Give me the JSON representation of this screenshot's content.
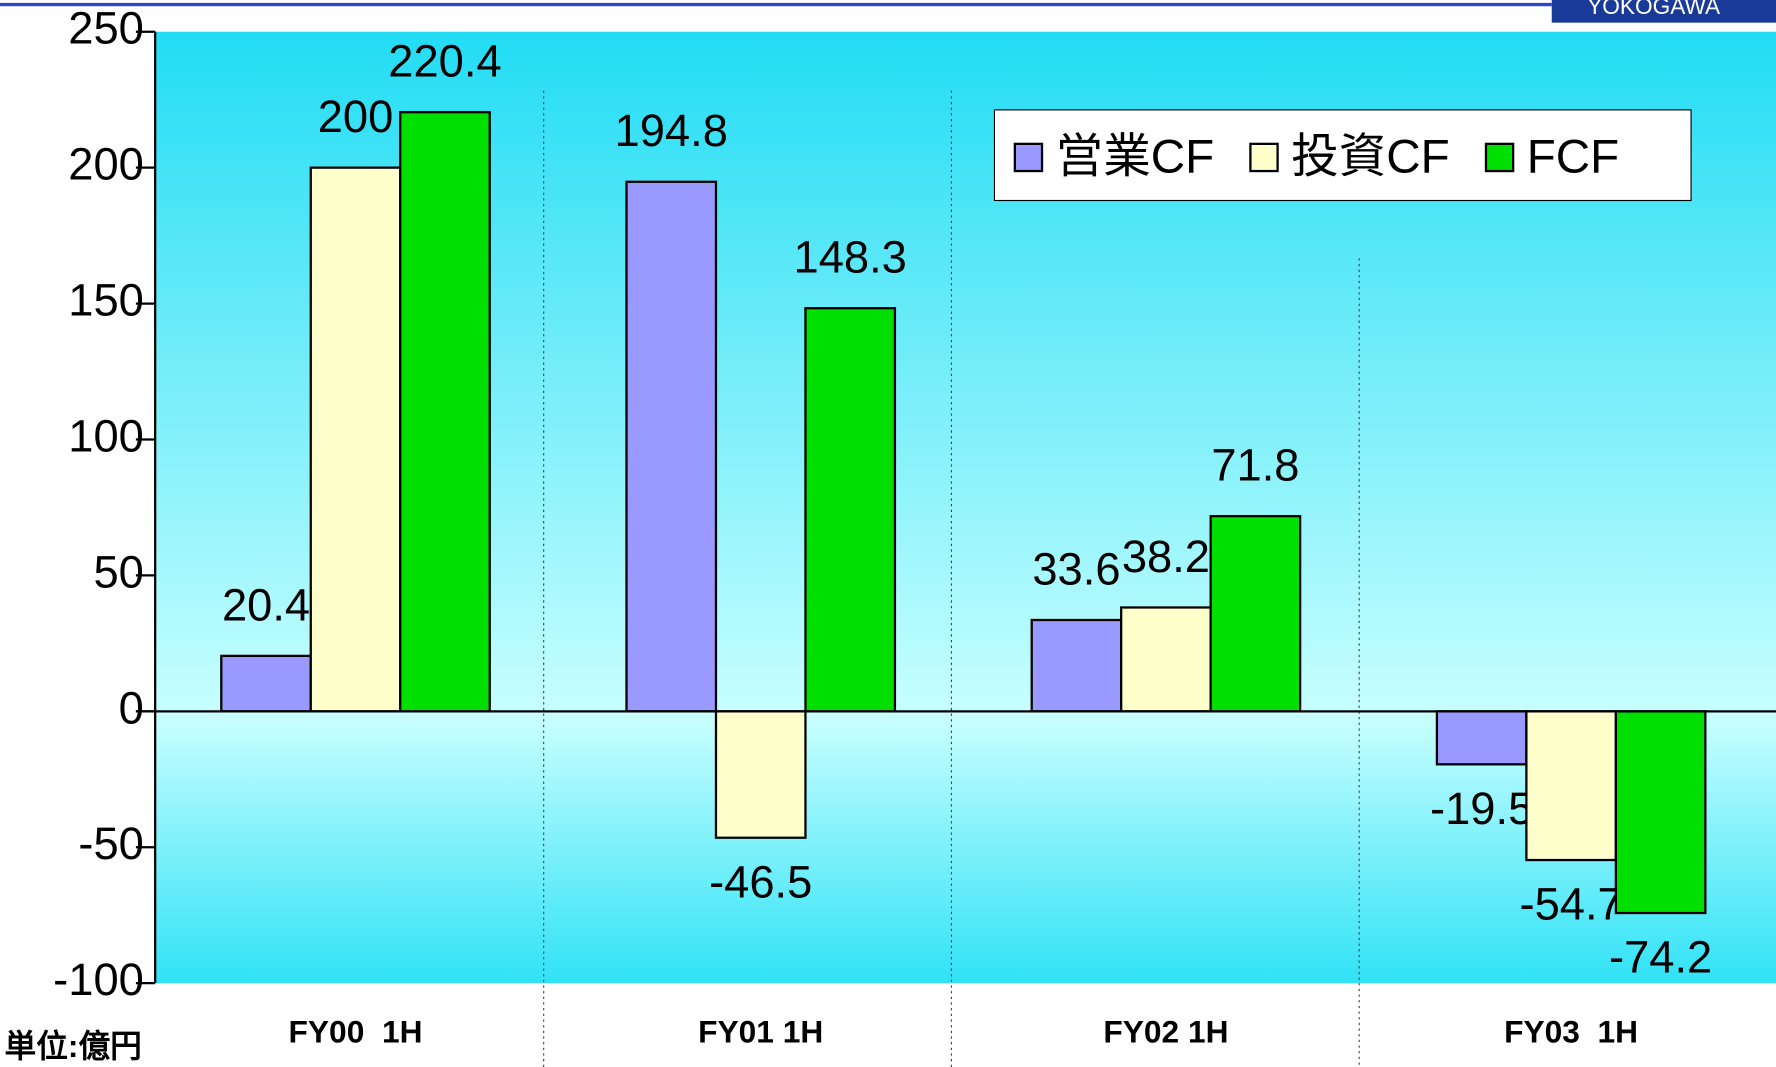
{
  "chart_data": {
    "type": "bar",
    "categories": [
      "FY00  1H",
      "FY01 1H",
      "FY02 1H",
      "FY03  1H"
    ],
    "series": [
      {
        "name": "営業CF",
        "color": "#9999ff",
        "values": [
          20.4,
          194.8,
          33.6,
          -19.5
        ]
      },
      {
        "name": "投資CF",
        "color": "#ffffcc",
        "values": [
          200,
          -46.5,
          38.2,
          -54.7
        ]
      },
      {
        "name": "FCF",
        "color": "#00e000",
        "values": [
          220.4,
          148.3,
          71.8,
          -74.2
        ]
      }
    ],
    "ylim": [
      -100,
      250
    ],
    "yticks": [
      -100,
      -50,
      0,
      50,
      100,
      150,
      200,
      250
    ],
    "unit_label": "単位:億円",
    "logo": "YOKOGAWA"
  }
}
